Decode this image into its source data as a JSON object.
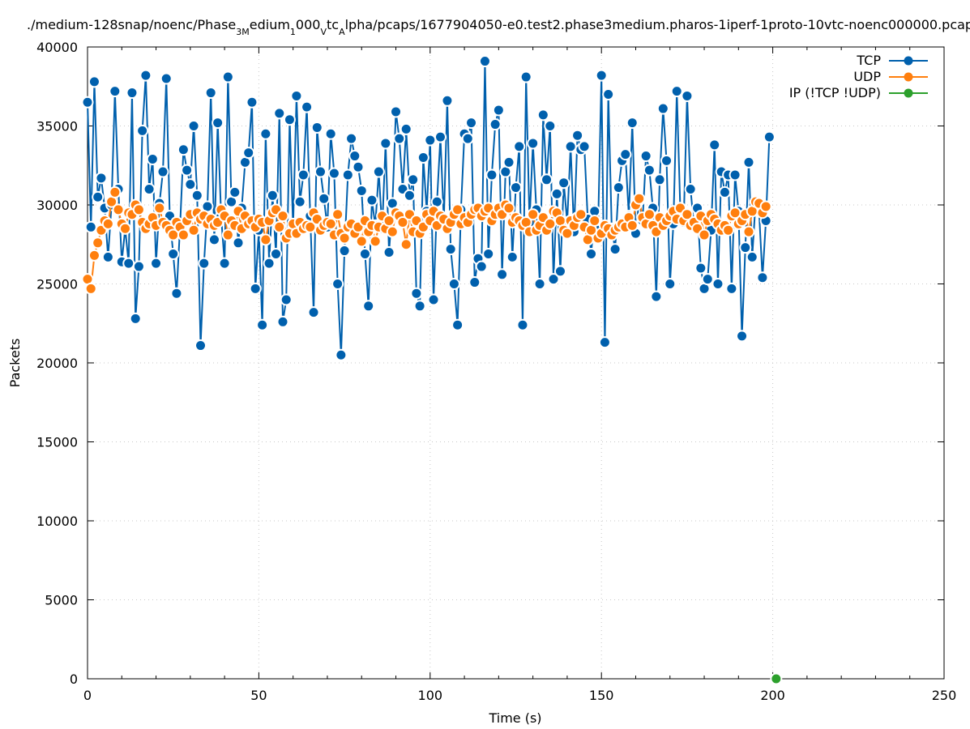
{
  "chart_data": {
    "type": "line",
    "title": "./medium-128snap/noenc/Phase_3Medium_1000_Vtc_Alpha/pcaps/1677904050-e0.test2.phase3medium.pharos-1iperf-1proto-10vtc-noenc000000.pcap",
    "title_parts": [
      {
        "text": "./medium-128snap/noenc/Phase",
        "sub": false
      },
      {
        "text": "3M",
        "sub": true
      },
      {
        "text": "edium",
        "sub": false
      },
      {
        "text": "1",
        "sub": true
      },
      {
        "text": "000",
        "sub": false
      },
      {
        "text": "V",
        "sub": true
      },
      {
        "text": "tc",
        "sub": false
      },
      {
        "text": "A",
        "sub": true
      },
      {
        "text": "lpha/pcaps/1677904050-e0.test2.phase3medium.pharos-1iperf-1proto-10vtc-noenc000000.pcap",
        "sub": false
      }
    ],
    "xlabel": "Time (s)",
    "ylabel": "Packets",
    "xlim": [
      0,
      250
    ],
    "ylim": [
      0,
      40000
    ],
    "xticks": [
      0,
      50,
      100,
      150,
      200,
      250
    ],
    "yticks": [
      0,
      5000,
      10000,
      15000,
      20000,
      25000,
      30000,
      35000,
      40000
    ],
    "grid": true,
    "legend_position": "top-right",
    "series": [
      {
        "name": "TCP",
        "color": "#0060ad",
        "start": 0,
        "step": 1,
        "values": [
          36500,
          28600,
          37800,
          30500,
          31700,
          29800,
          26700,
          30000,
          37200,
          31000,
          26400,
          28500,
          26300,
          37100,
          22800,
          26100,
          34700,
          38200,
          31000,
          32900,
          26300,
          30100,
          32100,
          38000,
          29300,
          26900,
          24400,
          28600,
          33500,
          32200,
          31300,
          35000,
          30600,
          21100,
          26300,
          29900,
          37100,
          27800,
          35200,
          29300,
          26300,
          38100,
          30200,
          30800,
          27600,
          29800,
          32700,
          33300,
          36500,
          24700,
          28400,
          22400,
          34500,
          26300,
          30600,
          26900,
          35800,
          22600,
          24000,
          35400,
          28600,
          36900,
          30200,
          31900,
          36200,
          29300,
          23200,
          34900,
          32100,
          30400,
          28600,
          34500,
          32000,
          25000,
          20500,
          27100,
          31900,
          34200,
          33100,
          32400,
          30900,
          26900,
          23600,
          30300,
          28700,
          32100,
          28500,
          33900,
          27000,
          30100,
          35900,
          34200,
          31000,
          34800,
          30600,
          31600,
          24400,
          23600,
          33000,
          29600,
          34100,
          24000,
          30200,
          34300,
          29000,
          36600,
          27200,
          25000,
          22400,
          29700,
          34500,
          34200,
          35200,
          25100,
          26600,
          26100,
          39100,
          26900,
          31900,
          35100,
          36000,
          25600,
          32100,
          32700,
          26700,
          31100,
          33700,
          22400,
          38100,
          28900,
          33900,
          29700,
          25000,
          35700,
          31600,
          35000,
          25300,
          30700,
          25800,
          31400,
          28900,
          33700,
          28300,
          34400,
          33500,
          33700,
          29100,
          26900,
          29600,
          28400,
          38200,
          21300,
          37000,
          28500,
          27200,
          31100,
          32800,
          33200,
          29300,
          35200,
          28200,
          30300,
          29000,
          33100,
          32200,
          29800,
          24200,
          31600,
          36100,
          32800,
          25000,
          28800,
          37200,
          29800,
          28900,
          36900,
          31000,
          28700,
          29800,
          26000,
          24700,
          25300,
          28400,
          33800,
          25000,
          32100,
          30800,
          31900,
          24700,
          31900,
          29600,
          21700,
          27300,
          32700,
          26700,
          30200,
          29600,
          25400,
          29000,
          34300
        ]
      },
      {
        "name": "UDP",
        "color": "#ff7f0e",
        "start": 0,
        "step": 1,
        "values": [
          25300,
          24700,
          26800,
          27600,
          28400,
          29000,
          28800,
          30200,
          30800,
          29700,
          28800,
          28500,
          29500,
          29400,
          30000,
          29700,
          28900,
          28500,
          28800,
          29200,
          28700,
          29800,
          28900,
          28700,
          28400,
          28100,
          28900,
          28600,
          28100,
          29000,
          29400,
          28400,
          29500,
          29100,
          29300,
          28800,
          29100,
          28700,
          28900,
          29700,
          29300,
          28100,
          29000,
          28700,
          29600,
          28500,
          29300,
          28800,
          29000,
          28600,
          29100,
          28900,
          27800,
          29000,
          29500,
          29700,
          28600,
          29300,
          27900,
          28200,
          28800,
          28200,
          28900,
          28500,
          28700,
          28600,
          29500,
          29100,
          28400,
          28700,
          28900,
          28800,
          28100,
          29400,
          28200,
          27900,
          28600,
          28800,
          28200,
          28600,
          27700,
          29000,
          28300,
          28700,
          27700,
          28600,
          29300,
          28500,
          29000,
          28300,
          29500,
          29300,
          28900,
          27500,
          29400,
          28300,
          29000,
          28200,
          28600,
          29400,
          29000,
          29600,
          28700,
          29300,
          29100,
          28500,
          28900,
          29400,
          29700,
          28800,
          29200,
          28900,
          29400,
          29700,
          29800,
          29300,
          29600,
          29800,
          29000,
          29400,
          29800,
          29400,
          30000,
          29800,
          28900,
          29200,
          29000,
          28700,
          28900,
          28300,
          29400,
          28400,
          28700,
          29200,
          28400,
          28800,
          29600,
          29500,
          29000,
          28400,
          28200,
          29000,
          28700,
          29200,
          29400,
          28600,
          27800,
          28400,
          29000,
          27900,
          28200,
          28700,
          28500,
          28100,
          28400,
          28600,
          28800,
          28600,
          29200,
          28700,
          30000,
          30400,
          29200,
          28800,
          29400,
          28700,
          28300,
          29200,
          28700,
          29000,
          29300,
          29600,
          29100,
          29800,
          29000,
          29400,
          28700,
          28900,
          28500,
          29300,
          28100,
          29000,
          29400,
          29100,
          28800,
          28400,
          28700,
          28400,
          29300,
          29500,
          28800,
          29000,
          29400,
          28300,
          29600,
          30200,
          30100,
          29500,
          29900
        ]
      },
      {
        "name": "IP (!TCP  !UDP)",
        "color": "#2ca02c",
        "x": [
          201
        ],
        "values": [
          0
        ]
      }
    ]
  }
}
